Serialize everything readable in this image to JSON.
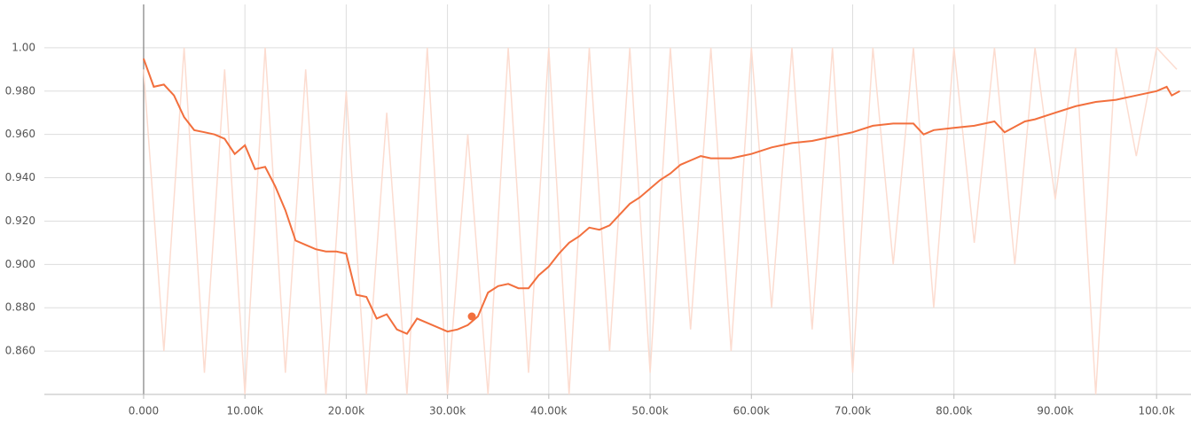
{
  "chart_data": {
    "type": "line",
    "xlim": [
      -9800,
      103400
    ],
    "ylim": [
      0.84,
      1.02
    ],
    "xticks": [
      {
        "value": 0,
        "label": "0.000"
      },
      {
        "value": 10000,
        "label": "10.00k"
      },
      {
        "value": 20000,
        "label": "20.00k"
      },
      {
        "value": 30000,
        "label": "30.00k"
      },
      {
        "value": 40000,
        "label": "40.00k"
      },
      {
        "value": 50000,
        "label": "50.00k"
      },
      {
        "value": 60000,
        "label": "60.00k"
      },
      {
        "value": 70000,
        "label": "70.00k"
      },
      {
        "value": 80000,
        "label": "80.00k"
      },
      {
        "value": 90000,
        "label": "90.00k"
      },
      {
        "value": 100000,
        "label": "100.0k"
      }
    ],
    "yticks": [
      {
        "value": 0.86,
        "label": "0.860"
      },
      {
        "value": 0.88,
        "label": "0.880"
      },
      {
        "value": 0.9,
        "label": "0.900"
      },
      {
        "value": 0.92,
        "label": "0.920"
      },
      {
        "value": 0.94,
        "label": "0.940"
      },
      {
        "value": 0.96,
        "label": "0.960"
      },
      {
        "value": 0.98,
        "label": "0.980"
      },
      {
        "value": 1.0,
        "label": "1.00"
      }
    ],
    "grid": true,
    "series": [
      {
        "color": "#fcdcd0",
        "x": [
          0,
          2000,
          4000,
          6000,
          8000,
          10000,
          12000,
          14000,
          16000,
          18000,
          20000,
          22000,
          24000,
          26000,
          28000,
          30000,
          32000,
          34000,
          36000,
          38000,
          40000,
          42000,
          44000,
          46000,
          48000,
          50000,
          52000,
          54000,
          56000,
          58000,
          60000,
          62000,
          64000,
          66000,
          68000,
          70000,
          72000,
          74000,
          76000,
          78000,
          80000,
          82000,
          84000,
          86000,
          88000,
          90000,
          92000,
          94000,
          96000,
          98000,
          100000,
          102000
        ],
        "values": [
          0.99,
          0.86,
          1.0,
          0.85,
          0.99,
          0.84,
          1.0,
          0.85,
          0.99,
          0.84,
          0.98,
          0.84,
          0.97,
          0.84,
          1.0,
          0.84,
          0.96,
          0.84,
          1.0,
          0.85,
          1.0,
          0.84,
          1.0,
          0.86,
          1.0,
          0.85,
          1.0,
          0.87,
          1.0,
          0.86,
          1.0,
          0.88,
          1.0,
          0.87,
          1.0,
          0.85,
          1.0,
          0.9,
          1.0,
          0.88,
          1.0,
          0.91,
          1.0,
          0.9,
          1.0,
          0.93,
          1.0,
          0.84,
          1.0,
          0.95,
          1.0,
          0.99
        ]
      },
      {
        "color": "#f26f3d",
        "x": [
          0,
          1000,
          2000,
          3000,
          4000,
          5000,
          6000,
          7000,
          8000,
          9000,
          10000,
          11000,
          12000,
          13000,
          14000,
          15000,
          16000,
          17000,
          18000,
          19000,
          20000,
          21000,
          22000,
          23000,
          24000,
          25000,
          26000,
          27000,
          28000,
          29000,
          30000,
          31000,
          32000,
          33000,
          34000,
          35000,
          36000,
          37000,
          38000,
          39000,
          40000,
          41000,
          42000,
          43000,
          44000,
          45000,
          46000,
          47000,
          48000,
          49000,
          50000,
          51000,
          52000,
          53000,
          54000,
          55000,
          56000,
          57000,
          58000,
          59000,
          60000,
          62000,
          64000,
          66000,
          68000,
          70000,
          72000,
          74000,
          76000,
          77000,
          78000,
          80000,
          82000,
          84000,
          85000,
          87000,
          88000,
          90000,
          92000,
          94000,
          96000,
          98000,
          100000,
          101000,
          101500,
          102300
        ],
        "values": [
          0.995,
          0.982,
          0.983,
          0.978,
          0.968,
          0.962,
          0.961,
          0.96,
          0.958,
          0.951,
          0.955,
          0.944,
          0.945,
          0.936,
          0.925,
          0.911,
          0.909,
          0.907,
          0.906,
          0.906,
          0.905,
          0.886,
          0.885,
          0.875,
          0.877,
          0.87,
          0.868,
          0.875,
          0.873,
          0.871,
          0.869,
          0.87,
          0.872,
          0.876,
          0.887,
          0.89,
          0.891,
          0.889,
          0.889,
          0.895,
          0.899,
          0.905,
          0.91,
          0.913,
          0.917,
          0.916,
          0.918,
          0.923,
          0.928,
          0.931,
          0.935,
          0.939,
          0.942,
          0.946,
          0.948,
          0.95,
          0.949,
          0.949,
          0.949,
          0.95,
          0.951,
          0.954,
          0.956,
          0.957,
          0.959,
          0.961,
          0.964,
          0.965,
          0.965,
          0.96,
          0.962,
          0.963,
          0.964,
          0.966,
          0.961,
          0.966,
          0.967,
          0.97,
          0.973,
          0.975,
          0.976,
          0.978,
          0.98,
          0.982,
          0.978,
          0.98
        ]
      }
    ],
    "highlight": {
      "x": 32400,
      "y": 0.876
    }
  }
}
